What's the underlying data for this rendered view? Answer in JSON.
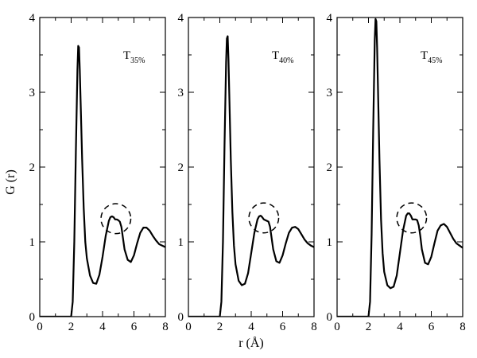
{
  "chart_data": {
    "type": "line",
    "ylabel": "G (r)",
    "xlabel": "r (Å)",
    "xlim": [
      0,
      8
    ],
    "ylim": [
      0,
      4
    ],
    "x_ticks": [
      0,
      2,
      4,
      6,
      8
    ],
    "y_ticks": [
      0,
      1,
      2,
      3,
      4
    ],
    "grid": false,
    "panels": [
      {
        "label_main": "T",
        "label_sub": "35%",
        "highlight": {
          "cx": 4.85,
          "cy": 1.31,
          "rx": 0.95,
          "ry": 0.2
        },
        "series": [
          {
            "x": [
              0,
              1.5,
              2.0,
              2.1,
              2.2,
              2.3,
              2.4,
              2.45,
              2.5,
              2.55,
              2.6,
              2.7,
              2.8,
              2.9,
              3.0,
              3.2,
              3.4,
              3.6,
              3.8,
              4.0,
              4.2,
              4.4,
              4.5,
              4.6,
              4.7,
              4.8,
              4.9,
              5.0,
              5.1,
              5.2,
              5.3,
              5.4,
              5.6,
              5.8,
              6.0,
              6.2,
              6.4,
              6.6,
              6.8,
              7.0,
              7.2,
              7.4,
              7.6,
              7.8,
              8.0
            ],
            "y": [
              0,
              0,
              0,
              0.2,
              1.0,
              2.2,
              3.3,
              3.62,
              3.6,
              3.3,
              2.9,
              2.1,
              1.45,
              1.0,
              0.78,
              0.55,
              0.45,
              0.44,
              0.56,
              0.8,
              1.08,
              1.28,
              1.33,
              1.34,
              1.33,
              1.3,
              1.3,
              1.29,
              1.27,
              1.2,
              1.05,
              0.9,
              0.76,
              0.73,
              0.82,
              0.98,
              1.12,
              1.19,
              1.19,
              1.15,
              1.08,
              1.02,
              0.97,
              0.95,
              0.93
            ]
          }
        ]
      },
      {
        "label_main": "T",
        "label_sub": "40%",
        "highlight": {
          "cx": 4.8,
          "cy": 1.32,
          "rx": 0.95,
          "ry": 0.2
        },
        "series": [
          {
            "x": [
              0,
              1.5,
              2.0,
              2.1,
              2.2,
              2.3,
              2.4,
              2.45,
              2.5,
              2.55,
              2.6,
              2.7,
              2.8,
              2.9,
              3.0,
              3.2,
              3.4,
              3.6,
              3.8,
              4.0,
              4.2,
              4.4,
              4.5,
              4.6,
              4.7,
              4.8,
              4.9,
              5.0,
              5.1,
              5.2,
              5.3,
              5.4,
              5.6,
              5.8,
              6.0,
              6.2,
              6.4,
              6.6,
              6.8,
              7.0,
              7.2,
              7.4,
              7.6,
              7.8,
              8.0
            ],
            "y": [
              0,
              0,
              0,
              0.2,
              1.0,
              2.3,
              3.4,
              3.72,
              3.75,
              3.45,
              3.0,
              2.1,
              1.4,
              0.95,
              0.7,
              0.48,
              0.42,
              0.44,
              0.58,
              0.85,
              1.12,
              1.3,
              1.34,
              1.35,
              1.33,
              1.3,
              1.29,
              1.28,
              1.27,
              1.2,
              1.05,
              0.9,
              0.74,
              0.72,
              0.82,
              0.98,
              1.12,
              1.19,
              1.2,
              1.17,
              1.1,
              1.03,
              0.98,
              0.95,
              0.93
            ]
          }
        ]
      },
      {
        "label_main": "T",
        "label_sub": "45%",
        "highlight": {
          "cx": 4.75,
          "cy": 1.32,
          "rx": 0.95,
          "ry": 0.2
        },
        "series": [
          {
            "x": [
              0,
              1.5,
              2.0,
              2.1,
              2.2,
              2.3,
              2.4,
              2.45,
              2.5,
              2.55,
              2.6,
              2.7,
              2.8,
              2.9,
              3.0,
              3.2,
              3.4,
              3.6,
              3.8,
              4.0,
              4.2,
              4.4,
              4.5,
              4.6,
              4.7,
              4.8,
              4.9,
              5.0,
              5.1,
              5.2,
              5.3,
              5.4,
              5.6,
              5.8,
              6.0,
              6.2,
              6.4,
              6.6,
              6.8,
              7.0,
              7.2,
              7.4,
              7.6,
              7.8,
              8.0
            ],
            "y": [
              0,
              0,
              0,
              0.2,
              1.1,
              2.5,
              3.7,
              3.98,
              3.95,
              3.6,
              3.1,
              2.1,
              1.3,
              0.85,
              0.6,
              0.42,
              0.38,
              0.4,
              0.55,
              0.85,
              1.15,
              1.35,
              1.38,
              1.38,
              1.35,
              1.3,
              1.3,
              1.3,
              1.29,
              1.22,
              1.08,
              0.9,
              0.72,
              0.7,
              0.8,
              0.98,
              1.15,
              1.22,
              1.24,
              1.2,
              1.12,
              1.04,
              0.98,
              0.95,
              0.92
            ]
          }
        ]
      }
    ]
  }
}
